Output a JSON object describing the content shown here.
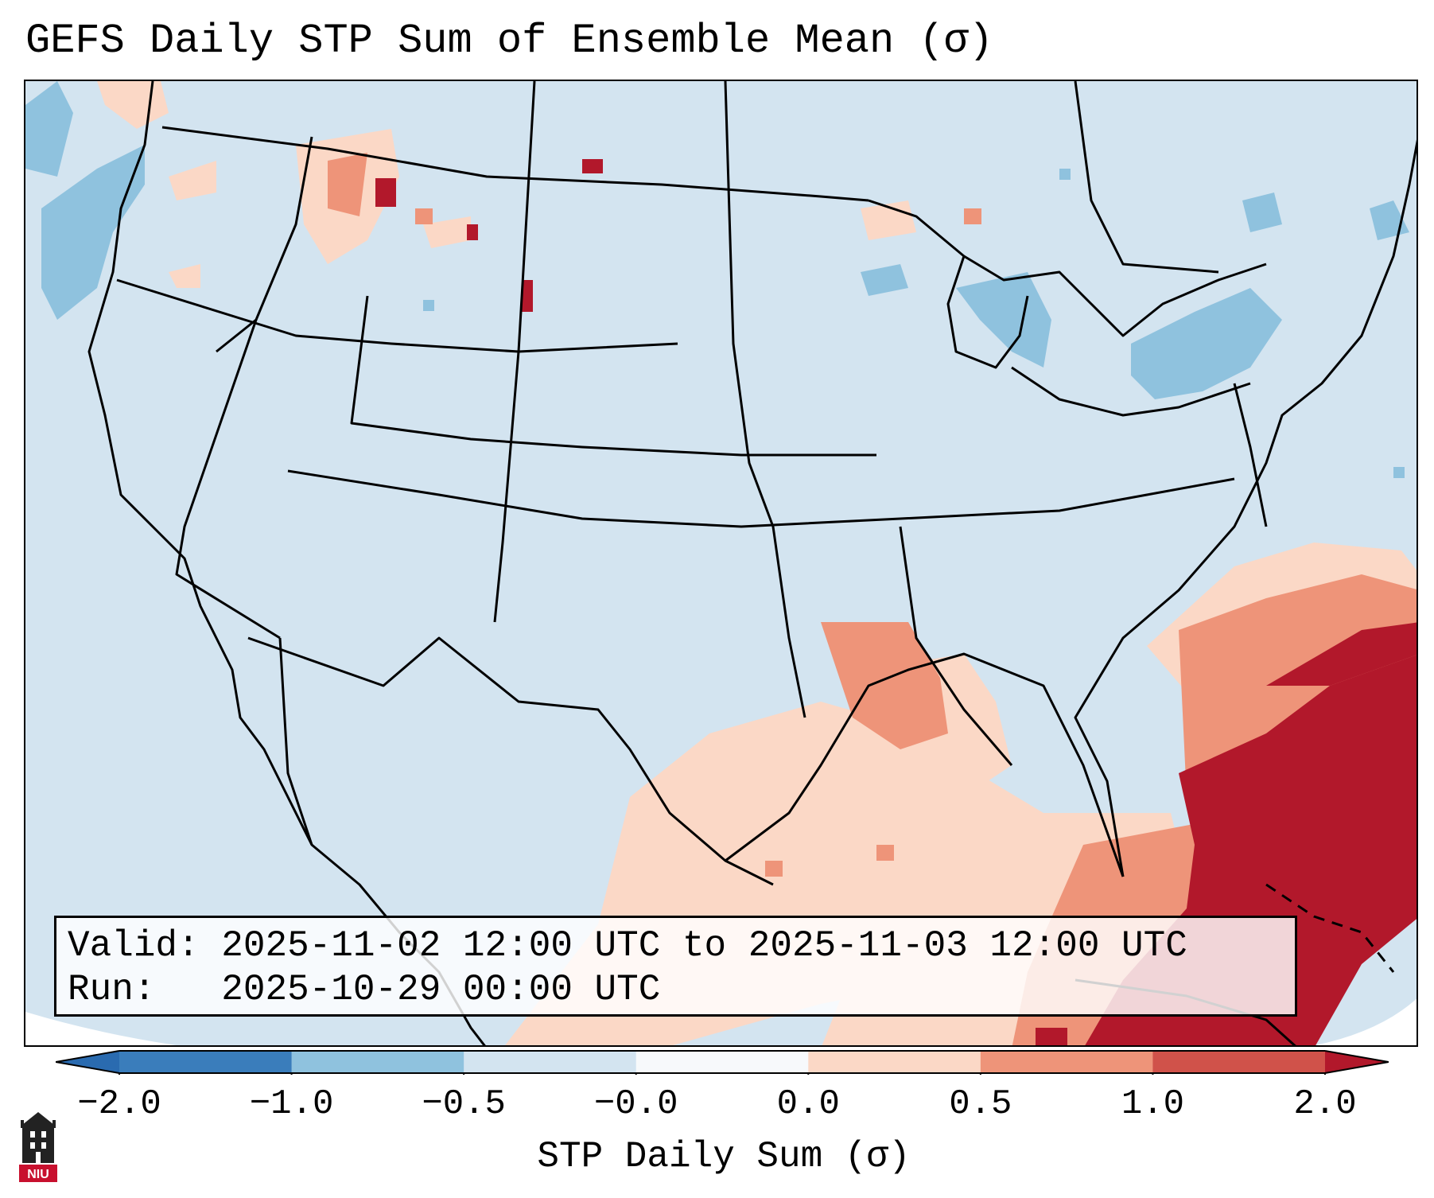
{
  "title": "GEFS Daily STP Sum of Ensemble Mean (σ)",
  "info": {
    "valid_label": "Valid:",
    "valid_value": "2025-11-02 12:00 UTC to 2025-11-03 12:00 UTC",
    "run_label": "Run:",
    "run_value": "2025-10-29 00:00 UTC"
  },
  "colorbar": {
    "label": "STP Daily Sum (σ)",
    "ticks": [
      "−2.0",
      "−1.0",
      "−0.5",
      "−0.0",
      "0.0",
      "0.5",
      "1.0",
      "2.0"
    ],
    "colors": [
      "#3a7dbb",
      "#8fc2de",
      "#d3e4f0",
      "#f7f9fb",
      "#fbd8c6",
      "#ee9479",
      "#d0524a"
    ],
    "extend_low_color": "#2a6bb0",
    "extend_high_color": "#b2182b"
  },
  "logo": {
    "text": "NIU"
  },
  "map": {
    "ocean_color": "#d3e4f0",
    "legend_colors": {
      "strong_negative": "#8fc2de",
      "near_zero": "#d3e4f0",
      "weak_positive": "#fbd8c6",
      "moderate_positive": "#ee9479",
      "strong_positive": "#d0524a",
      "extreme_positive": "#b2182b"
    }
  }
}
